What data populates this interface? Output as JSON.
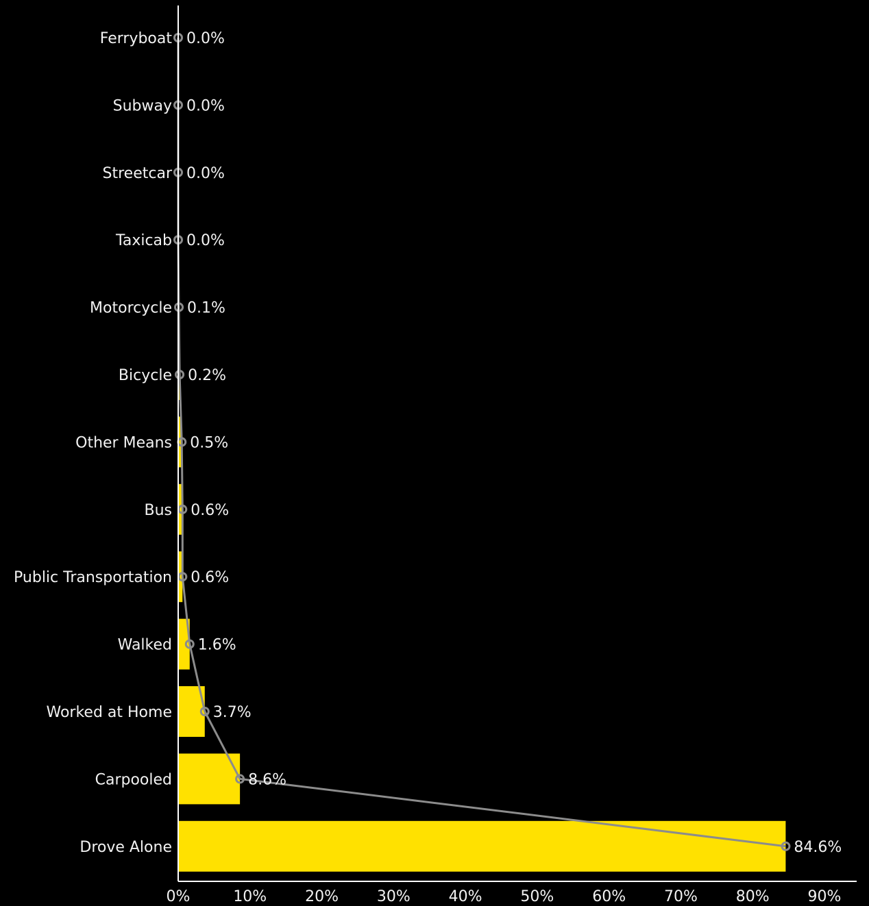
{
  "chart_data": {
    "type": "bar",
    "orientation": "horizontal",
    "categories": [
      "Ferryboat",
      "Subway",
      "Streetcar",
      "Taxicab",
      "Motorcycle",
      "Bicycle",
      "Other Means",
      "Bus",
      "Public Transportation",
      "Walked",
      "Worked at Home",
      "Carpooled",
      "Drove Alone"
    ],
    "values": [
      0.0,
      0.0,
      0.0,
      0.0,
      0.1,
      0.2,
      0.5,
      0.6,
      0.6,
      1.6,
      3.7,
      8.6,
      84.6
    ],
    "value_labels": [
      "0.0%",
      "0.0%",
      "0.0%",
      "0.0%",
      "0.1%",
      "0.2%",
      "0.5%",
      "0.6%",
      "0.6%",
      "1.6%",
      "3.7%",
      "8.6%",
      "84.6%"
    ],
    "overlay": {
      "type": "line",
      "values": [
        0.0,
        0.0,
        0.0,
        0.0,
        0.1,
        0.2,
        0.5,
        0.6,
        0.6,
        1.6,
        3.7,
        8.6,
        84.6
      ],
      "marker": "circle"
    },
    "xlim": [
      0,
      90
    ],
    "xticks": [
      0,
      10,
      20,
      30,
      40,
      50,
      60,
      70,
      80,
      90
    ],
    "xtick_labels": [
      "0%",
      "10%",
      "20%",
      "30%",
      "40%",
      "50%",
      "60%",
      "70%",
      "80%",
      "90%"
    ],
    "title": "",
    "xlabel": "",
    "ylabel": "",
    "grid": false,
    "legend": "none",
    "colors": {
      "background": "#000000",
      "bar": "#FFE100",
      "line": "#8C8C8C",
      "marker": "#8C8C8C",
      "axis": "#FFFFFF",
      "text": "#F2F2F2"
    }
  }
}
